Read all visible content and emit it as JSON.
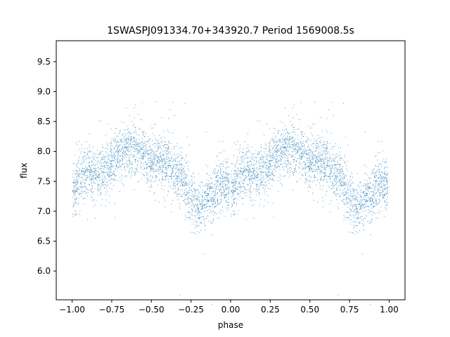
{
  "chart_data": {
    "type": "scatter",
    "title": "1SWASPJ091334.70+343920.7 Period 1569008.5s",
    "xlabel": "phase",
    "ylabel": "flux",
    "xlim": [
      -1.1,
      1.1
    ],
    "ylim": [
      5.52,
      9.85
    ],
    "x_ticks": [
      -1.0,
      -0.75,
      -0.5,
      -0.25,
      0.0,
      0.25,
      0.5,
      0.75,
      1.0
    ],
    "x_tick_labels": [
      "−1.00",
      "−0.75",
      "−0.50",
      "−0.25",
      "0.00",
      "0.25",
      "0.50",
      "0.75",
      "1.00"
    ],
    "y_ticks": [
      6.0,
      6.5,
      7.0,
      7.5,
      8.0,
      8.5,
      9.0,
      9.5
    ],
    "y_tick_labels": [
      "6.0",
      "6.5",
      "7.0",
      "7.5",
      "8.0",
      "8.5",
      "9.0",
      "9.5"
    ],
    "grid": false,
    "point_color": "#1f77b4",
    "series": [
      {
        "profile_phase": [
          0.0,
          0.05,
          0.1,
          0.15,
          0.2,
          0.25,
          0.3,
          0.35,
          0.4,
          0.45,
          0.5,
          0.55,
          0.6,
          0.65,
          0.7,
          0.75,
          0.8,
          0.85,
          0.9,
          0.95,
          1.0
        ],
        "profile_flux": [
          7.35,
          7.55,
          7.65,
          7.6,
          7.7,
          7.8,
          7.95,
          8.05,
          8.05,
          7.95,
          7.85,
          7.85,
          7.8,
          7.65,
          7.5,
          7.3,
          7.05,
          7.2,
          7.35,
          7.45,
          7.35
        ]
      }
    ]
  }
}
